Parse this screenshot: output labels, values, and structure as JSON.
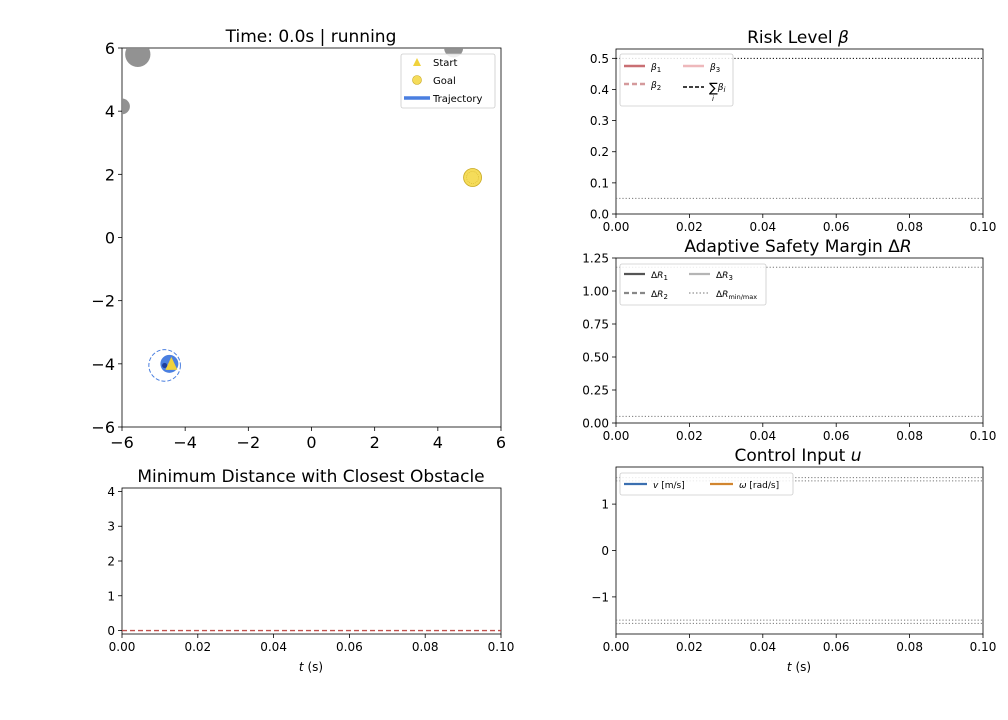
{
  "chart_data": [
    {
      "id": "trajectory",
      "type": "scatter",
      "title": "Time: 0.0s | running",
      "xlim": [
        -6,
        6
      ],
      "ylim": [
        -6,
        6
      ],
      "xticks": [
        "−6",
        "−4",
        "−2",
        "0",
        "2",
        "4",
        "6"
      ],
      "yticks": [
        "−6",
        "−4",
        "−2",
        "0",
        "2",
        "4",
        "6"
      ],
      "legend": {
        "placement": "top-right",
        "entries": [
          "Start",
          "Goal",
          "Trajectory"
        ]
      },
      "colors": {
        "start": "#f0d23c",
        "goal": "#f5dc5a",
        "trajectory": "#4a7fe0",
        "obstacle": "#8c8c8c"
      },
      "start": {
        "x": -4.5,
        "y": -4.0
      },
      "goal": {
        "x": 5.1,
        "y": 1.9
      },
      "robot": {
        "x": -4.65,
        "y": -4.05,
        "safety_radius": 0.5
      },
      "obstacles": [
        {
          "x": -5.5,
          "y": 5.8,
          "r": 0.4
        },
        {
          "x": -6.0,
          "y": 4.15,
          "r": 0.25
        },
        {
          "x": 4.5,
          "y": 6.0,
          "r": 0.3
        }
      ]
    },
    {
      "id": "risk",
      "type": "line",
      "title": "Risk Level β",
      "xlim": [
        0,
        0.1
      ],
      "ylim": [
        0,
        0.53
      ],
      "xticks": [
        "0.00",
        "0.02",
        "0.04",
        "0.06",
        "0.08",
        "0.10"
      ],
      "yticks": [
        "0.0",
        "0.1",
        "0.2",
        "0.3",
        "0.4",
        "0.5"
      ],
      "ytick_values": [
        0,
        0.1,
        0.2,
        0.3,
        0.4,
        0.5
      ],
      "legend": {
        "placement": "top-left",
        "entries": [
          "β1",
          "β2",
          "β3",
          "Σβi"
        ]
      },
      "reference_lines": [
        {
          "y": 0.5,
          "style": "dotted",
          "color": "#000000"
        },
        {
          "y": 0.05,
          "style": "dotted",
          "color": "#777777"
        }
      ]
    },
    {
      "id": "margin",
      "type": "line",
      "title": "Adaptive Safety Margin ΔR",
      "xlim": [
        0,
        0.1
      ],
      "ylim": [
        0,
        1.25
      ],
      "xticks": [
        "0.00",
        "0.02",
        "0.04",
        "0.06",
        "0.08",
        "0.10"
      ],
      "yticks": [
        "0.00",
        "0.25",
        "0.50",
        "0.75",
        "1.00",
        "1.25"
      ],
      "ytick_values": [
        0,
        0.25,
        0.5,
        0.75,
        1.0,
        1.25
      ],
      "legend": {
        "placement": "top-left",
        "entries": [
          "ΔR1",
          "ΔR2",
          "ΔR3",
          "ΔRmin/max"
        ]
      },
      "reference_lines": [
        {
          "y": 1.18,
          "style": "dotted",
          "color": "#777777"
        },
        {
          "y": 0.05,
          "style": "dotted",
          "color": "#777777"
        }
      ]
    },
    {
      "id": "distance",
      "type": "line",
      "title": "Minimum Distance with Closest Obstacle",
      "xlabel": "t (s)",
      "xlim": [
        0,
        0.1
      ],
      "ylim": [
        -0.1,
        4.1
      ],
      "xticks": [
        "0.00",
        "0.02",
        "0.04",
        "0.06",
        "0.08",
        "0.10"
      ],
      "yticks": [
        "0",
        "1",
        "2",
        "3",
        "4"
      ],
      "ytick_values": [
        0,
        1,
        2,
        3,
        4
      ],
      "reference_lines": [
        {
          "y": 0,
          "style": "dashed",
          "color": "#c0504d"
        }
      ]
    },
    {
      "id": "control",
      "type": "line",
      "title": "Control Input u",
      "xlabel": "t (s)",
      "xlim": [
        0,
        0.1
      ],
      "ylim": [
        -1.8,
        1.8
      ],
      "xticks": [
        "0.00",
        "0.02",
        "0.04",
        "0.06",
        "0.08",
        "0.10"
      ],
      "yticks": [
        "−1",
        "0",
        "1"
      ],
      "ytick_values": [
        -1,
        0,
        1
      ],
      "legend": {
        "placement": "top-left",
        "entries": [
          "v [m/s]",
          "ω [rad/s]"
        ]
      },
      "reference_lines": [
        {
          "y": 1.57,
          "style": "dotted",
          "color": "#777777"
        },
        {
          "y": 1.5,
          "style": "dotted",
          "color": "#777777"
        },
        {
          "y": -1.5,
          "style": "dotted",
          "color": "#777777"
        },
        {
          "y": -1.57,
          "style": "dotted",
          "color": "#777777"
        }
      ]
    }
  ]
}
